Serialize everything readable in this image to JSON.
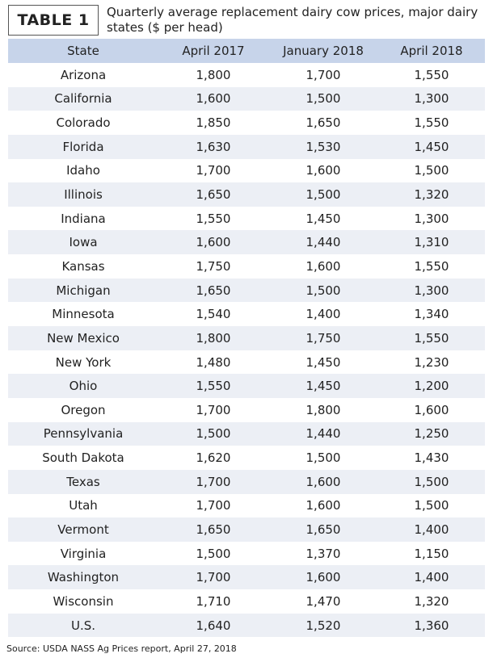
{
  "header": {
    "label": "TABLE 1",
    "title": "Quarterly average replacement dairy cow prices, major dairy states ($ per head)"
  },
  "table": {
    "columns": [
      "State",
      "April 2017",
      "January 2018",
      "April 2018"
    ],
    "rows": [
      [
        "Arizona",
        "1,800",
        "1,700",
        "1,550"
      ],
      [
        "California",
        "1,600",
        "1,500",
        "1,300"
      ],
      [
        "Colorado",
        "1,850",
        "1,650",
        "1,550"
      ],
      [
        "Florida",
        "1,630",
        "1,530",
        "1,450"
      ],
      [
        "Idaho",
        "1,700",
        "1,600",
        "1,500"
      ],
      [
        "Illinois",
        "1,650",
        "1,500",
        "1,320"
      ],
      [
        "Indiana",
        "1,550",
        "1,450",
        "1,300"
      ],
      [
        "Iowa",
        "1,600",
        "1,440",
        "1,310"
      ],
      [
        "Kansas",
        "1,750",
        "1,600",
        "1,550"
      ],
      [
        "Michigan",
        "1,650",
        "1,500",
        "1,300"
      ],
      [
        "Minnesota",
        "1,540",
        "1,400",
        "1,340"
      ],
      [
        "New Mexico",
        "1,800",
        "1,750",
        "1,550"
      ],
      [
        "New York",
        "1,480",
        "1,450",
        "1,230"
      ],
      [
        "Ohio",
        "1,550",
        "1,450",
        "1,200"
      ],
      [
        "Oregon",
        "1,700",
        "1,800",
        "1,600"
      ],
      [
        "Pennsylvania",
        "1,500",
        "1,440",
        "1,250"
      ],
      [
        "South Dakota",
        "1,620",
        "1,500",
        "1,430"
      ],
      [
        "Texas",
        "1,700",
        "1,600",
        "1,500"
      ],
      [
        "Utah",
        "1,700",
        "1,600",
        "1,500"
      ],
      [
        "Vermont",
        "1,650",
        "1,650",
        "1,400"
      ],
      [
        "Virginia",
        "1,500",
        "1,370",
        "1,150"
      ],
      [
        "Washington",
        "1,700",
        "1,600",
        "1,400"
      ],
      [
        "Wisconsin",
        "1,710",
        "1,470",
        "1,320"
      ],
      [
        "U.S.",
        "1,640",
        "1,520",
        "1,360"
      ]
    ]
  },
  "source": "Source: USDA NASS Ag Prices report, April 27, 2018"
}
